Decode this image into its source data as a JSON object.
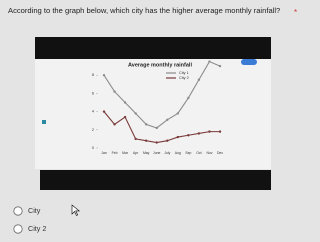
{
  "question": "According to the graph below, which city has the higher average monthly rainfall?",
  "required_mark": "*",
  "chart_data": {
    "type": "line",
    "title": "Average monthly rainfall",
    "categories": [
      "Jan",
      "Feb",
      "Mar",
      "Apr",
      "May",
      "June",
      "July",
      "Aug",
      "Sep",
      "Oct",
      "Nov",
      "Dec"
    ],
    "series": [
      {
        "name": "City 1",
        "color": "#8c8c8c",
        "values": [
          8,
          6.2,
          5,
          3.8,
          2.6,
          2.2,
          3.1,
          3.8,
          5.5,
          7.5,
          9.5,
          9
        ]
      },
      {
        "name": "City 2",
        "color": "#7a3b3b",
        "values": [
          4,
          2.6,
          3.4,
          1,
          0.8,
          0.6,
          0.8,
          1.2,
          1.4,
          1.6,
          1.8,
          1.8
        ]
      }
    ],
    "ylim": [
      0,
      10
    ],
    "yticks": [
      0,
      2,
      4,
      6,
      8
    ],
    "grid": false
  },
  "options": [
    "City",
    "City 2"
  ]
}
